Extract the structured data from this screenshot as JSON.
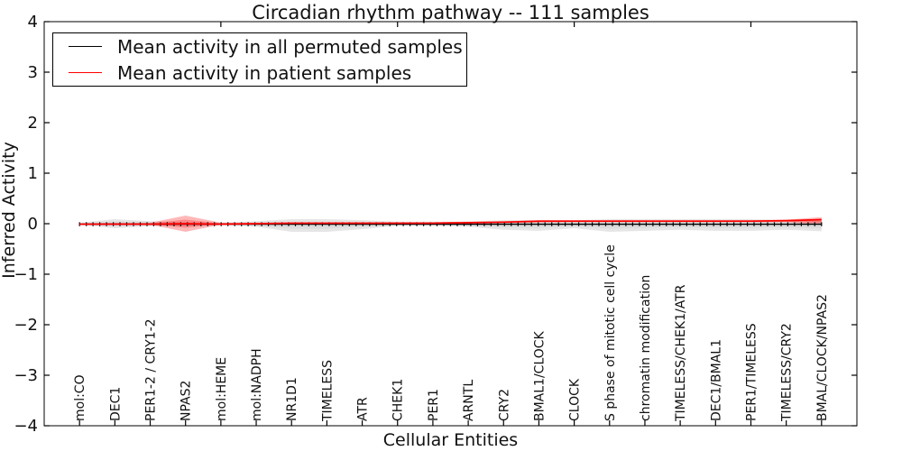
{
  "figure": {
    "title": "Circadian rhythm pathway -- 111 samples"
  },
  "chart_data": {
    "type": "line",
    "title": "Circadian rhythm pathway -- 111 samples",
    "xlabel": "Cellular Entities",
    "ylabel": "Inferred Activity",
    "ylim": [
      -4,
      4
    ],
    "yticks": [
      -4,
      -3,
      -2,
      -1,
      0,
      1,
      2,
      3,
      4
    ],
    "xlim": [
      0,
      23
    ],
    "top_axis_ticks": [
      5,
      10,
      15,
      20
    ],
    "grid": false,
    "legend": {
      "position": "upper-left",
      "entries": [
        {
          "label": "Mean activity in all permuted samples",
          "color": "#000000"
        },
        {
          "label": "Mean activity in patient samples",
          "color": "#ff0000"
        }
      ]
    },
    "categories": [
      "mol:CO",
      "DEC1",
      "PER1-2 / CRY1-2",
      "NPAS2",
      "mol:HEME",
      "mol:NADPH",
      "NR1D1",
      "TIMELESS",
      "ATR",
      "CHEK1",
      "PER1",
      "ARNTL",
      "CRY2",
      "BMAL1/CLOCK",
      "CLOCK",
      "S phase of mitotic cell cycle",
      "chromatin modification",
      "TIMELESS/CHEK1/ATR",
      "DEC1/BMAL1",
      "PER1/TIMELESS",
      "TIMELESS/CRY2",
      "BMAL/CLOCK/NPAS2"
    ],
    "series": [
      {
        "name": "Mean activity in all permuted samples",
        "color": "#000000",
        "marker": "|",
        "marker_count": 111,
        "values": [
          -0.01,
          -0.01,
          -0.01,
          -0.01,
          -0.01,
          -0.01,
          -0.01,
          -0.01,
          -0.01,
          -0.01,
          -0.01,
          -0.01,
          -0.01,
          -0.01,
          -0.01,
          -0.01,
          -0.01,
          -0.01,
          -0.01,
          -0.01,
          -0.01,
          -0.01
        ]
      },
      {
        "name": "Mean activity in patient samples",
        "color": "#ff0000",
        "marker": "none",
        "values": [
          -0.01,
          -0.01,
          -0.01,
          0,
          -0.01,
          0,
          0.01,
          0.01,
          0.01,
          0.01,
          0.01,
          0.02,
          0.03,
          0.05,
          0.05,
          0.05,
          0.05,
          0.05,
          0.05,
          0.05,
          0.06,
          0.08
        ]
      }
    ],
    "bands": [
      {
        "name": "permuted-samples-range",
        "color": "#aaaaaa",
        "upper": [
          0.02,
          0.09,
          0.05,
          0.03,
          0.02,
          0.05,
          0.09,
          0.09,
          0.07,
          0.04,
          0.04,
          0.04,
          0.07,
          0.07,
          0.07,
          0.09,
          0.09,
          0.09,
          0.09,
          0.09,
          0.07,
          0.06
        ],
        "lower": [
          -0.02,
          -0.09,
          -0.05,
          -0.03,
          -0.02,
          -0.06,
          -0.16,
          -0.16,
          -0.11,
          -0.04,
          -0.04,
          -0.06,
          -0.12,
          -0.14,
          -0.09,
          -0.16,
          -0.14,
          -0.12,
          -0.14,
          -0.14,
          -0.12,
          -0.15
        ]
      },
      {
        "name": "patient-samples-range",
        "color": "#ff0000",
        "upper": [
          0.01,
          0.02,
          0.02,
          0.16,
          0.02,
          0.02,
          0.03,
          0.03,
          0.03,
          0.03,
          0.03,
          0.04,
          0.05,
          0.07,
          0.07,
          0.07,
          0.07,
          0.07,
          0.07,
          0.07,
          0.08,
          0.13
        ],
        "lower": [
          -0.01,
          -0.02,
          -0.02,
          -0.16,
          -0.02,
          -0.01,
          -0.01,
          -0.01,
          -0.01,
          -0.01,
          0,
          0,
          0.01,
          0.02,
          0.03,
          0.03,
          0.03,
          0.03,
          0.03,
          0.03,
          0.03,
          -0.02
        ]
      }
    ]
  }
}
